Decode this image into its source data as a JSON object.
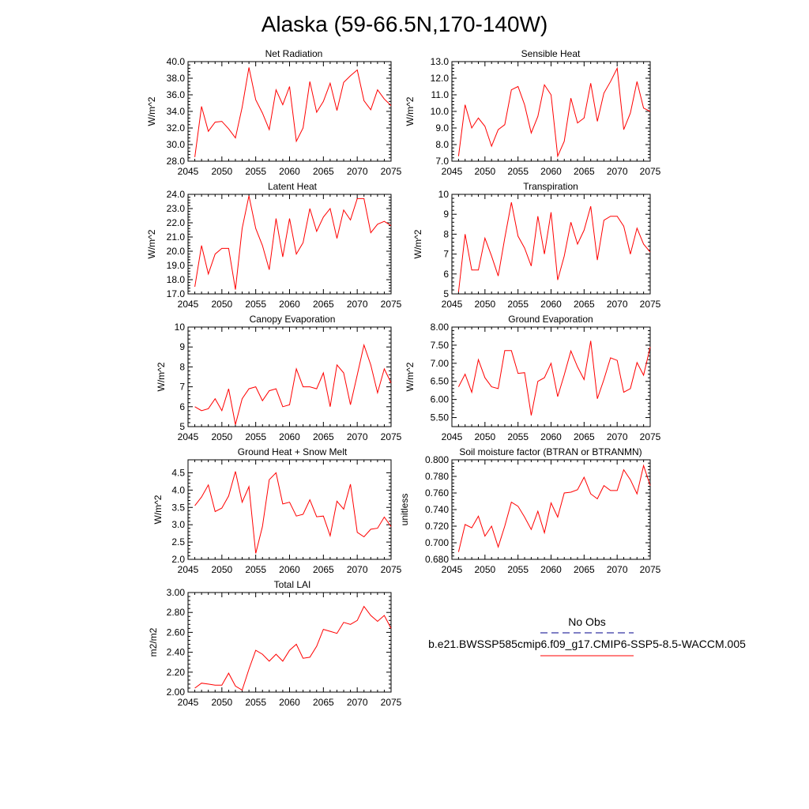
{
  "figure": {
    "title": "Alaska (59-66.5N,170-140W)"
  },
  "chart_data": [
    {
      "type": "line",
      "title": "Net Radiation",
      "ylabel": "W/m^2",
      "xlim": [
        2045,
        2075
      ],
      "ylim": [
        28,
        40
      ],
      "xticks": [
        2045,
        2050,
        2055,
        2060,
        2065,
        2070,
        2075
      ],
      "yticks": [
        "28.0",
        "30.0",
        "32.0",
        "34.0",
        "36.0",
        "38.0",
        "40.0"
      ],
      "x": [
        2046,
        2047,
        2048,
        2049,
        2050,
        2051,
        2052,
        2053,
        2054,
        2055,
        2056,
        2057,
        2058,
        2059,
        2060,
        2061,
        2062,
        2063,
        2064,
        2065,
        2066,
        2067,
        2068,
        2069,
        2070,
        2071,
        2072,
        2073,
        2074,
        2075
      ],
      "series": [
        {
          "color": "#ff0000",
          "values": [
            28.5,
            34.6,
            31.6,
            32.7,
            32.8,
            31.9,
            30.8,
            34.5,
            39.3,
            35.4,
            33.8,
            31.8,
            36.6,
            34.8,
            37.0,
            30.4,
            32.0,
            37.6,
            33.9,
            35.2,
            37.4,
            34.1,
            37.5,
            38.3,
            39.0,
            35.3,
            34.2,
            36.6,
            35.5,
            34.7
          ]
        }
      ]
    },
    {
      "type": "line",
      "title": "Sensible Heat",
      "ylabel": "W/m^2",
      "xlim": [
        2045,
        2075
      ],
      "ylim": [
        7,
        13
      ],
      "xticks": [
        2045,
        2050,
        2055,
        2060,
        2065,
        2070,
        2075
      ],
      "yticks": [
        "7.0",
        "8.0",
        "9.0",
        "10.0",
        "11.0",
        "12.0",
        "13.0"
      ],
      "x": [
        2046,
        2047,
        2048,
        2049,
        2050,
        2051,
        2052,
        2053,
        2054,
        2055,
        2056,
        2057,
        2058,
        2059,
        2060,
        2061,
        2062,
        2063,
        2064,
        2065,
        2066,
        2067,
        2068,
        2069,
        2070,
        2071,
        2072,
        2073,
        2074,
        2075
      ],
      "series": [
        {
          "color": "#ff0000",
          "values": [
            7.3,
            10.4,
            9.0,
            9.6,
            9.1,
            7.9,
            8.9,
            9.2,
            11.3,
            11.5,
            10.4,
            8.7,
            9.7,
            11.6,
            11.0,
            7.3,
            8.2,
            10.8,
            9.3,
            9.6,
            11.7,
            9.4,
            11.1,
            11.8,
            12.6,
            8.9,
            9.9,
            11.8,
            10.2,
            10.0
          ]
        }
      ]
    },
    {
      "type": "line",
      "title": "Latent Heat",
      "ylabel": "W/m^2",
      "xlim": [
        2045,
        2075
      ],
      "ylim": [
        17,
        24
      ],
      "xticks": [
        2045,
        2050,
        2055,
        2060,
        2065,
        2070,
        2075
      ],
      "yticks": [
        "17.0",
        "18.0",
        "19.0",
        "20.0",
        "21.0",
        "22.0",
        "23.0",
        "24.0"
      ],
      "x": [
        2046,
        2047,
        2048,
        2049,
        2050,
        2051,
        2052,
        2053,
        2054,
        2055,
        2056,
        2057,
        2058,
        2059,
        2060,
        2061,
        2062,
        2063,
        2064,
        2065,
        2066,
        2067,
        2068,
        2069,
        2070,
        2071,
        2072,
        2073,
        2074,
        2075
      ],
      "series": [
        {
          "color": "#ff0000",
          "values": [
            17.5,
            20.4,
            18.4,
            19.8,
            20.2,
            20.2,
            17.3,
            21.6,
            23.9,
            21.6,
            20.4,
            18.7,
            22.3,
            19.6,
            22.3,
            19.8,
            20.6,
            23.0,
            21.4,
            22.4,
            23.0,
            20.9,
            22.9,
            22.2,
            23.7,
            23.7,
            21.3,
            21.9,
            22.1,
            21.8
          ]
        }
      ]
    },
    {
      "type": "line",
      "title": "Transpiration",
      "ylabel": "W/m^2",
      "xlim": [
        2045,
        2075
      ],
      "ylim": [
        5,
        10
      ],
      "xticks": [
        2045,
        2050,
        2055,
        2060,
        2065,
        2070,
        2075
      ],
      "yticks": [
        "5",
        "6",
        "7",
        "8",
        "9",
        "10"
      ],
      "x": [
        2046,
        2047,
        2048,
        2049,
        2050,
        2051,
        2052,
        2053,
        2054,
        2055,
        2056,
        2057,
        2058,
        2059,
        2060,
        2061,
        2062,
        2063,
        2064,
        2065,
        2066,
        2067,
        2068,
        2069,
        2070,
        2071,
        2072,
        2073,
        2074,
        2075
      ],
      "series": [
        {
          "color": "#ff0000",
          "values": [
            5.1,
            8.0,
            6.2,
            6.2,
            7.8,
            6.9,
            5.9,
            7.8,
            9.6,
            7.9,
            7.3,
            6.4,
            8.9,
            7.0,
            9.1,
            5.7,
            6.9,
            8.6,
            7.5,
            8.2,
            9.4,
            6.7,
            8.7,
            8.9,
            8.9,
            8.4,
            7.0,
            8.3,
            7.5,
            7.1
          ]
        }
      ]
    },
    {
      "type": "line",
      "title": "Canopy Evaporation",
      "ylabel": "W/m^2",
      "xlim": [
        2045,
        2075
      ],
      "ylim": [
        5,
        10
      ],
      "xticks": [
        2045,
        2050,
        2055,
        2060,
        2065,
        2070,
        2075
      ],
      "yticks": [
        "5",
        "6",
        "7",
        "8",
        "9",
        "10"
      ],
      "x": [
        2046,
        2047,
        2048,
        2049,
        2050,
        2051,
        2052,
        2053,
        2054,
        2055,
        2056,
        2057,
        2058,
        2059,
        2060,
        2061,
        2062,
        2063,
        2064,
        2065,
        2066,
        2067,
        2068,
        2069,
        2070,
        2071,
        2072,
        2073,
        2074,
        2075
      ],
      "series": [
        {
          "color": "#ff0000",
          "values": [
            6.0,
            5.8,
            5.9,
            6.4,
            5.8,
            6.9,
            5.1,
            6.4,
            6.9,
            7.0,
            6.3,
            6.8,
            6.9,
            6.0,
            6.1,
            7.9,
            7.0,
            7.0,
            6.9,
            7.7,
            6.0,
            8.1,
            7.7,
            6.1,
            7.6,
            9.1,
            8.1,
            6.7,
            7.9,
            7.2
          ]
        }
      ]
    },
    {
      "type": "line",
      "title": "Ground Evaporation",
      "ylabel": "W/m^2",
      "xlim": [
        2045,
        2075
      ],
      "ylim": [
        5.25,
        8
      ],
      "xticks": [
        2045,
        2050,
        2055,
        2060,
        2065,
        2070,
        2075
      ],
      "yticks": [
        "5.50",
        "6.00",
        "6.50",
        "7.00",
        "7.50",
        "8.00"
      ],
      "ytick_values": [
        5.5,
        6.0,
        6.5,
        7.0,
        7.5,
        8.0
      ],
      "x": [
        2046,
        2047,
        2048,
        2049,
        2050,
        2051,
        2052,
        2053,
        2054,
        2055,
        2056,
        2057,
        2058,
        2059,
        2060,
        2061,
        2062,
        2063,
        2064,
        2065,
        2066,
        2067,
        2068,
        2069,
        2070,
        2071,
        2072,
        2073,
        2074,
        2075
      ],
      "series": [
        {
          "color": "#ff0000",
          "values": [
            6.35,
            6.7,
            6.2,
            7.1,
            6.6,
            6.35,
            6.3,
            7.35,
            7.35,
            6.72,
            6.74,
            5.56,
            6.5,
            6.6,
            7.0,
            6.08,
            6.68,
            7.34,
            6.9,
            6.55,
            7.62,
            6.02,
            6.55,
            7.15,
            7.08,
            6.2,
            6.3,
            7.02,
            6.67,
            7.45
          ]
        }
      ]
    },
    {
      "type": "line",
      "title": "Ground Heat + Snow Melt",
      "ylabel": "W/m^2",
      "xlim": [
        2045,
        2075
      ],
      "ylim": [
        2.0,
        4.875
      ],
      "xticks": [
        2045,
        2050,
        2055,
        2060,
        2065,
        2070,
        2075
      ],
      "yticks": [
        "2.0",
        "2.5",
        "3.0",
        "3.5",
        "4.0",
        "4.5"
      ],
      "ytick_values": [
        2.0,
        2.5,
        3.0,
        3.5,
        4.0,
        4.5
      ],
      "x": [
        2046,
        2047,
        2048,
        2049,
        2050,
        2051,
        2052,
        2053,
        2054,
        2055,
        2056,
        2057,
        2058,
        2059,
        2060,
        2061,
        2062,
        2063,
        2064,
        2065,
        2066,
        2067,
        2068,
        2069,
        2070,
        2071,
        2072,
        2073,
        2074,
        2075
      ],
      "series": [
        {
          "color": "#ff0000",
          "values": [
            3.55,
            3.8,
            4.15,
            3.38,
            3.48,
            3.83,
            4.54,
            3.65,
            4.1,
            2.17,
            2.95,
            4.3,
            4.5,
            3.6,
            3.65,
            3.25,
            3.3,
            3.72,
            3.23,
            3.25,
            2.68,
            3.68,
            3.45,
            4.17,
            2.78,
            2.65,
            2.87,
            2.9,
            3.22,
            2.95
          ]
        }
      ]
    },
    {
      "type": "line",
      "title": "Soil moisture factor (BTRAN or BTRANMN)",
      "ylabel": "unitless",
      "xlim": [
        2045,
        2075
      ],
      "ylim": [
        0.68,
        0.8
      ],
      "xticks": [
        2045,
        2050,
        2055,
        2060,
        2065,
        2070,
        2075
      ],
      "yticks": [
        "0.680",
        "0.700",
        "0.720",
        "0.740",
        "0.760",
        "0.780",
        "0.800"
      ],
      "x": [
        2046,
        2047,
        2048,
        2049,
        2050,
        2051,
        2052,
        2053,
        2054,
        2055,
        2056,
        2057,
        2058,
        2059,
        2060,
        2061,
        2062,
        2063,
        2064,
        2065,
        2066,
        2067,
        2068,
        2069,
        2070,
        2071,
        2072,
        2073,
        2074,
        2075
      ],
      "series": [
        {
          "color": "#ff0000",
          "values": [
            0.689,
            0.722,
            0.718,
            0.732,
            0.708,
            0.72,
            0.695,
            0.72,
            0.749,
            0.744,
            0.731,
            0.716,
            0.738,
            0.712,
            0.748,
            0.731,
            0.76,
            0.761,
            0.764,
            0.779,
            0.759,
            0.753,
            0.769,
            0.763,
            0.763,
            0.788,
            0.776,
            0.759,
            0.793,
            0.769
          ]
        }
      ]
    },
    {
      "type": "line",
      "title": "Total LAI",
      "ylabel": "m2/m2",
      "xlim": [
        2045,
        2075
      ],
      "ylim": [
        2.0,
        3.0
      ],
      "xticks": [
        2045,
        2050,
        2055,
        2060,
        2065,
        2070,
        2075
      ],
      "yticks": [
        "2.00",
        "2.20",
        "2.40",
        "2.60",
        "2.80",
        "3.00"
      ],
      "x": [
        2046,
        2047,
        2048,
        2049,
        2050,
        2051,
        2052,
        2053,
        2054,
        2055,
        2056,
        2057,
        2058,
        2059,
        2060,
        2061,
        2062,
        2063,
        2064,
        2065,
        2066,
        2067,
        2068,
        2069,
        2070,
        2071,
        2072,
        2073,
        2074,
        2075
      ],
      "series": [
        {
          "color": "#ff0000",
          "values": [
            2.04,
            2.09,
            2.08,
            2.07,
            2.07,
            2.19,
            2.06,
            2.02,
            2.23,
            2.42,
            2.38,
            2.31,
            2.38,
            2.31,
            2.42,
            2.48,
            2.34,
            2.35,
            2.46,
            2.63,
            2.61,
            2.59,
            2.7,
            2.68,
            2.72,
            2.86,
            2.77,
            2.71,
            2.77,
            2.64
          ]
        }
      ]
    }
  ],
  "legend": {
    "entries": [
      {
        "label": "No Obs",
        "color": "#00008b",
        "dash": "dashed"
      },
      {
        "label": "b.e21.BWSSP585cmip6.f09_g17.CMIP6-SSP5-8.5-WACCM.005",
        "color": "#ff0000",
        "dash": "solid"
      }
    ]
  }
}
